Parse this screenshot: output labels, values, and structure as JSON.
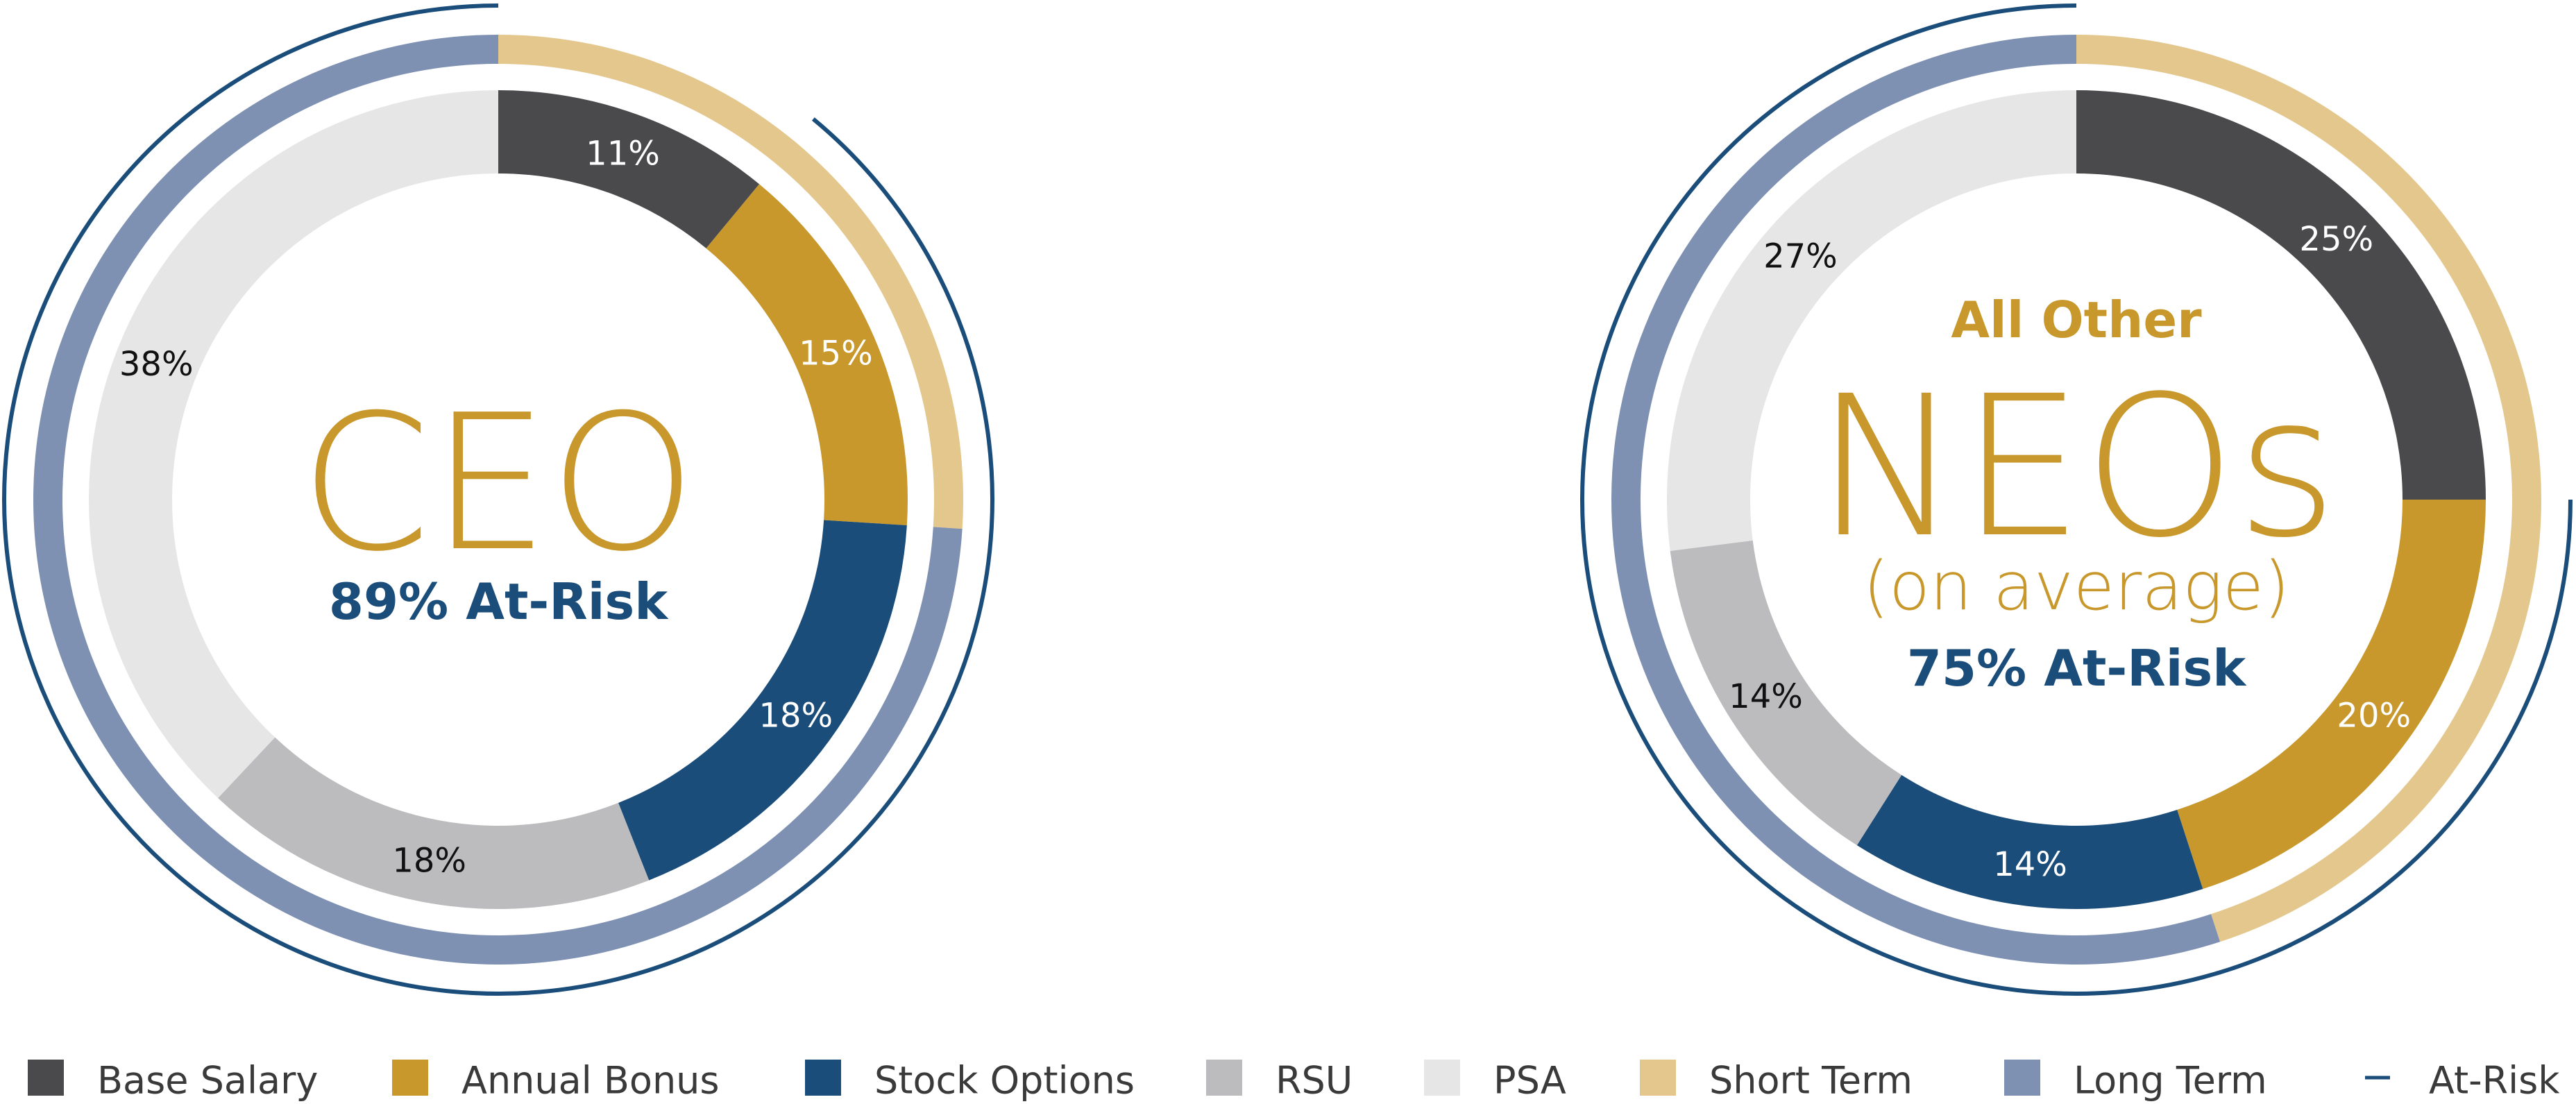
{
  "colors": {
    "base_salary": "#4a4a4c",
    "annual_bonus": "#c8982c",
    "stock_options": "#1b4d7a",
    "rsu": "#bcbcbe",
    "psa": "#e6e6e7",
    "short_term": "#e3c78d",
    "long_term": "#7e91b3",
    "at_risk": "#1b4d7a",
    "gold_text": "#c8982c",
    "blue_text": "#1b4d7a"
  },
  "chart_data": [
    {
      "type": "pie",
      "variant": "donut",
      "title": "CEO",
      "subtitle": "89% At-Risk",
      "categories": [
        "Base Salary",
        "Annual Bonus",
        "Stock Options",
        "RSU",
        "PSA"
      ],
      "values": [
        11,
        15,
        18,
        18,
        38
      ],
      "labels": [
        "11%",
        "15%",
        "18%",
        "18%",
        "38%"
      ],
      "outer_ring": [
        {
          "name": "Short Term",
          "value": 26
        },
        {
          "name": "Long Term",
          "value": 74
        }
      ],
      "at_risk_percent": 89
    },
    {
      "type": "pie",
      "variant": "donut",
      "title_top": "All Other",
      "title": "NEOs",
      "title_bottom": "(on average)",
      "subtitle": "75% At-Risk",
      "categories": [
        "Base Salary",
        "Annual Bonus",
        "Stock Options",
        "RSU",
        "PSA"
      ],
      "values": [
        25,
        20,
        14,
        14,
        27
      ],
      "labels": [
        "25%",
        "20%",
        "14%",
        "14%",
        "27%"
      ],
      "outer_ring": [
        {
          "name": "Short Term",
          "value": 45
        },
        {
          "name": "Long Term",
          "value": 55
        }
      ],
      "at_risk_percent": 75
    }
  ],
  "legend": [
    {
      "key": "base_salary",
      "label": "Base Salary",
      "marker": "square"
    },
    {
      "key": "annual_bonus",
      "label": "Annual Bonus",
      "marker": "square"
    },
    {
      "key": "stock_options",
      "label": "Stock Options",
      "marker": "square"
    },
    {
      "key": "rsu",
      "label": "RSU",
      "marker": "square"
    },
    {
      "key": "psa",
      "label": "PSA",
      "marker": "square"
    },
    {
      "key": "short_term",
      "label": "Short Term",
      "marker": "square"
    },
    {
      "key": "long_term",
      "label": "Long Term",
      "marker": "square"
    },
    {
      "key": "at_risk",
      "label": "At-Risk",
      "marker": "line"
    }
  ]
}
